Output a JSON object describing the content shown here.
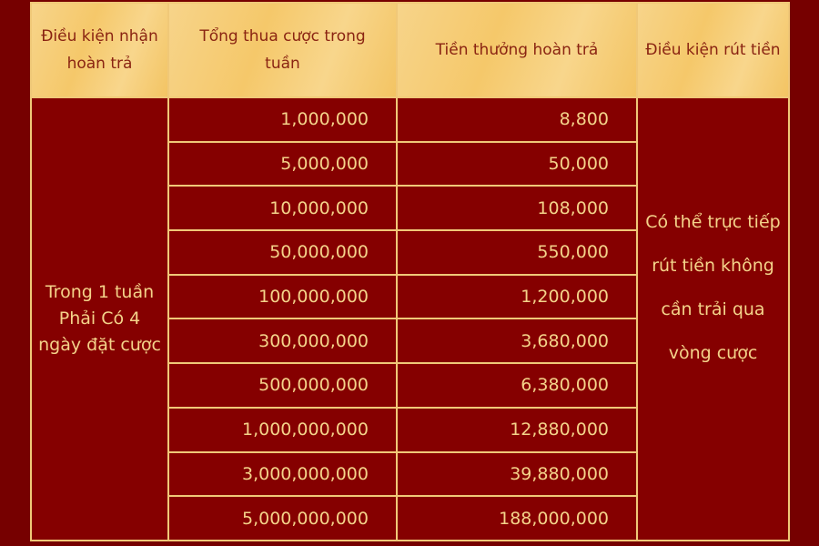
{
  "headers": [
    "Điều kiện nhận hoàn trả",
    "Tổng thua cược trong tuần",
    "Tiền thưởng hoàn trả",
    "Điều kiện rút tiền"
  ],
  "condition": [
    "Trong 1 tuần",
    "Phải Có 4",
    "ngày đặt cược"
  ],
  "withdrawal": [
    "Có thể trực tiếp rút tiền không",
    "cần trải qua vòng cược"
  ],
  "rows": [
    {
      "loss": "1,000,000",
      "bonus": "8,800"
    },
    {
      "loss": "5,000,000",
      "bonus": "50,000"
    },
    {
      "loss": "10,000,000",
      "bonus": "108,000"
    },
    {
      "loss": "50,000,000",
      "bonus": "550,000"
    },
    {
      "loss": "100,000,000",
      "bonus": "1,200,000"
    },
    {
      "loss": "300,000,000",
      "bonus": "3,680,000"
    },
    {
      "loss": "500,000,000",
      "bonus": "6,380,000"
    },
    {
      "loss": "1,000,000,000",
      "bonus": "12,880,000"
    },
    {
      "loss": "3,000,000,000",
      "bonus": "39,880,000"
    },
    {
      "loss": "5,000,000,000",
      "bonus": "188,000,000"
    }
  ],
  "colors": {
    "background": "#760000",
    "cell": "#850000",
    "header": "#f5c86a",
    "border": "#f0c878",
    "text": "#f4d38a",
    "header_text": "#8a2412"
  }
}
